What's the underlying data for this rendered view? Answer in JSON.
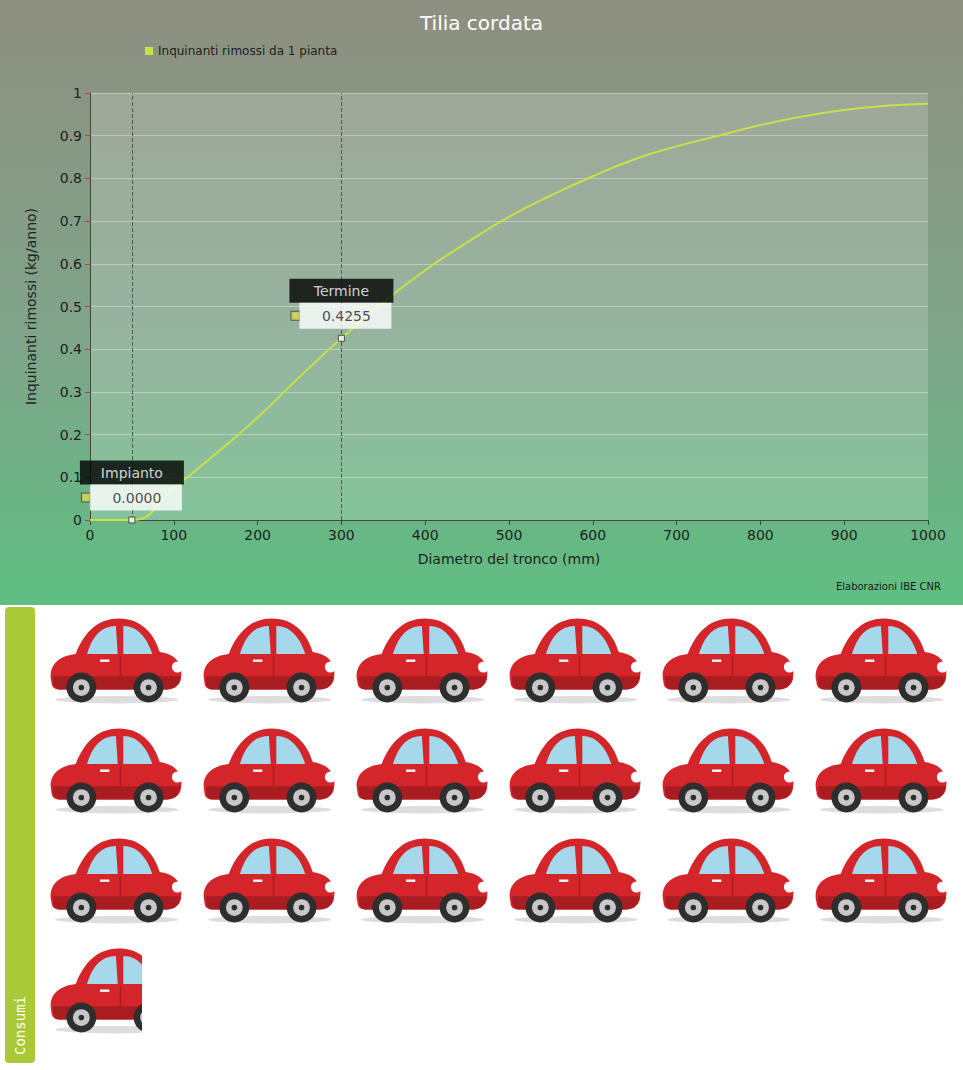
{
  "chart_data": {
    "type": "line",
    "title": "Tilia cordata",
    "x_label": "Diametro del tronco (mm)",
    "y_label": "Inquinanti rimossi (kg/anno)",
    "credit": "Elaborazioni IBE CNR",
    "x": [
      0,
      50,
      100,
      150,
      200,
      250,
      300,
      350,
      400,
      450,
      500,
      550,
      600,
      650,
      700,
      750,
      800,
      850,
      900,
      950,
      1000
    ],
    "series": [
      {
        "name": "Inquinanti rimossi da 1 pianta",
        "color": "#c8e04a",
        "values": [
          0,
          0,
          0.075,
          0.155,
          0.24,
          0.335,
          0.4255,
          0.51,
          0.585,
          0.65,
          0.71,
          0.76,
          0.805,
          0.845,
          0.875,
          0.9,
          0.925,
          0.945,
          0.96,
          0.97,
          0.975
        ]
      }
    ],
    "xlim": [
      0,
      1000
    ],
    "xticks": [
      0,
      100,
      200,
      300,
      400,
      500,
      600,
      700,
      800,
      900,
      1000
    ],
    "ylim": [
      0,
      1
    ],
    "yticks": [
      0,
      0.1,
      0.2,
      0.3,
      0.4,
      0.5,
      0.6,
      0.7,
      0.8,
      0.9,
      1
    ],
    "grid": true,
    "legend": "top-left",
    "annotations": [
      {
        "label": "Impianto",
        "x": 50,
        "y": 0,
        "value_label": "0.0000"
      },
      {
        "label": "Termine",
        "x": 300,
        "y": 0.4255,
        "value_label": "0.4255"
      }
    ]
  },
  "consumi": {
    "label": "Consumi",
    "cars": 18.7
  }
}
